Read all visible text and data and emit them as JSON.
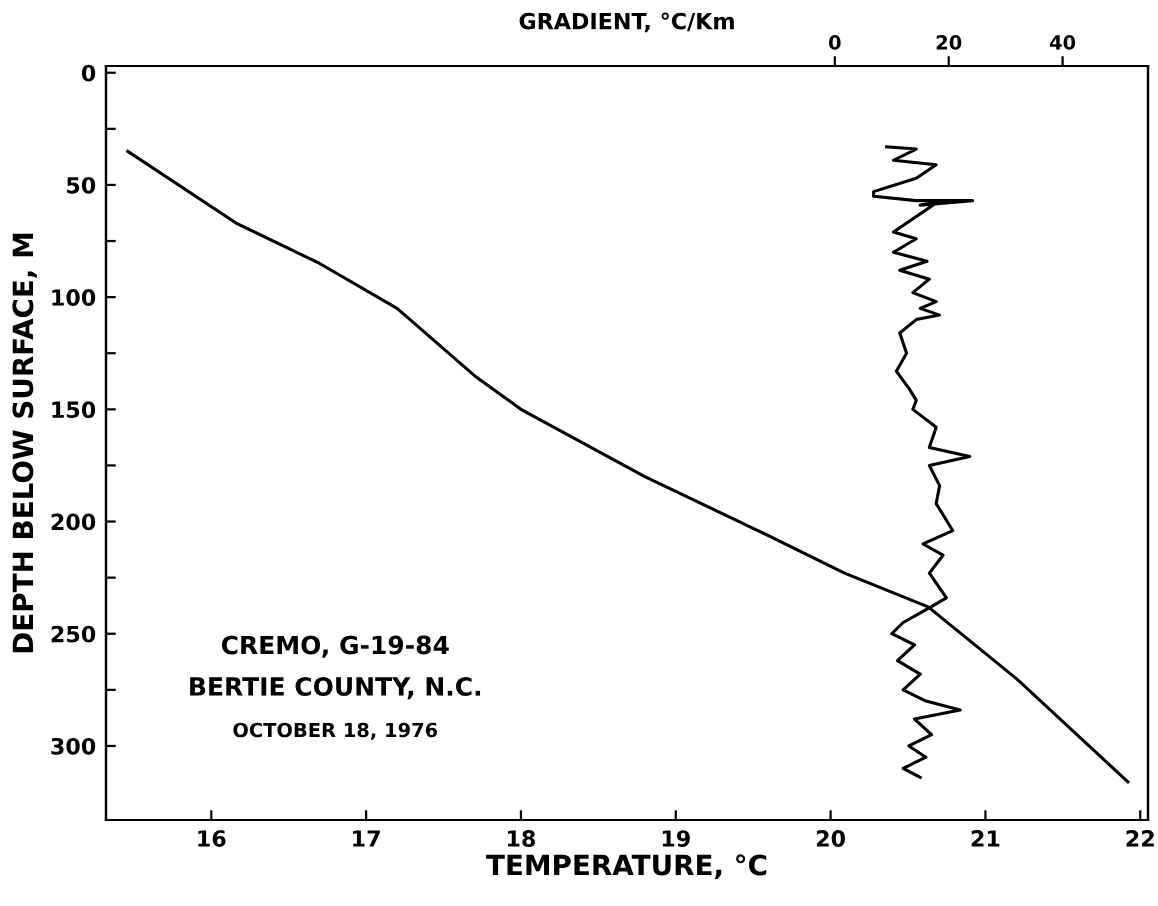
{
  "chart_data": {
    "type": "line",
    "xlabel": "TEMPERATURE, °C",
    "ylabel": "DEPTH BELOW SURFACE, M",
    "x2label": "GRADIENT, °C/Km",
    "xlim": [
      15.32,
      22.05
    ],
    "xticks": [
      16,
      17,
      18,
      19,
      20,
      21,
      22
    ],
    "x2lim": [
      -128,
      55
    ],
    "x2ticks": [
      0,
      20,
      40
    ],
    "ylim": [
      333,
      -3
    ],
    "yticks": [
      0,
      {
        "value": 25,
        "label": null
      },
      50,
      {
        "value": 75,
        "label": null
      },
      100,
      {
        "value": 125,
        "label": null
      },
      150,
      {
        "value": 175,
        "label": null
      },
      200,
      {
        "value": 225,
        "label": null
      },
      250,
      {
        "value": 275,
        "label": null
      },
      300
    ],
    "grid": false,
    "legend": false,
    "marker": "none",
    "line_style": "solid",
    "series": [
      {
        "color": "#000000",
        "x": [
          15.46,
          16.16,
          16.7,
          17.2,
          17.7,
          18.0,
          18.8,
          19.53,
          20.09,
          20.63,
          21.2,
          21.92
        ],
        "values": [
          35,
          67,
          85,
          105,
          135,
          150,
          180,
          204,
          223,
          238,
          270,
          316
        ]
      },
      {
        "color": "#000000",
        "axis": "x2",
        "x": [
          9.1,
          14.3,
          10.3,
          17.8,
          14.3,
          6.8,
          6.8,
          14.3,
          24.2,
          15.0,
          17.8,
          10.3,
          14.3,
          10.3,
          16.2,
          11.4,
          16.6,
          13.7,
          17.8,
          15.0,
          18.4,
          14.3,
          11.4,
          12.6,
          10.8,
          13.1,
          14.3,
          13.7,
          17.8,
          16.6,
          23.7,
          16.6,
          18.4,
          17.8,
          20.7,
          15.5,
          19.0,
          16.6,
          19.6,
          16.2,
          12,
          10,
          14,
          11,
          15,
          12,
          16,
          22,
          14,
          17,
          13,
          16,
          12,
          15
        ],
        "values": [
          33,
          34,
          39,
          41,
          47,
          53,
          55,
          57,
          57,
          59,
          58,
          71,
          74,
          80,
          84,
          88,
          92,
          98,
          102,
          105,
          108,
          110,
          116,
          125,
          133,
          141,
          146,
          150,
          158,
          167,
          171,
          175,
          184,
          192,
          204,
          210,
          215,
          223,
          234,
          239,
          245,
          250,
          255,
          262,
          268,
          275,
          280,
          284,
          288,
          295,
          300,
          305,
          310,
          314
        ]
      }
    ],
    "annotations": [
      "CREMO, G-19-84",
      "BERTIE COUNTY, N.C.",
      "OCTOBER 18, 1976"
    ]
  }
}
